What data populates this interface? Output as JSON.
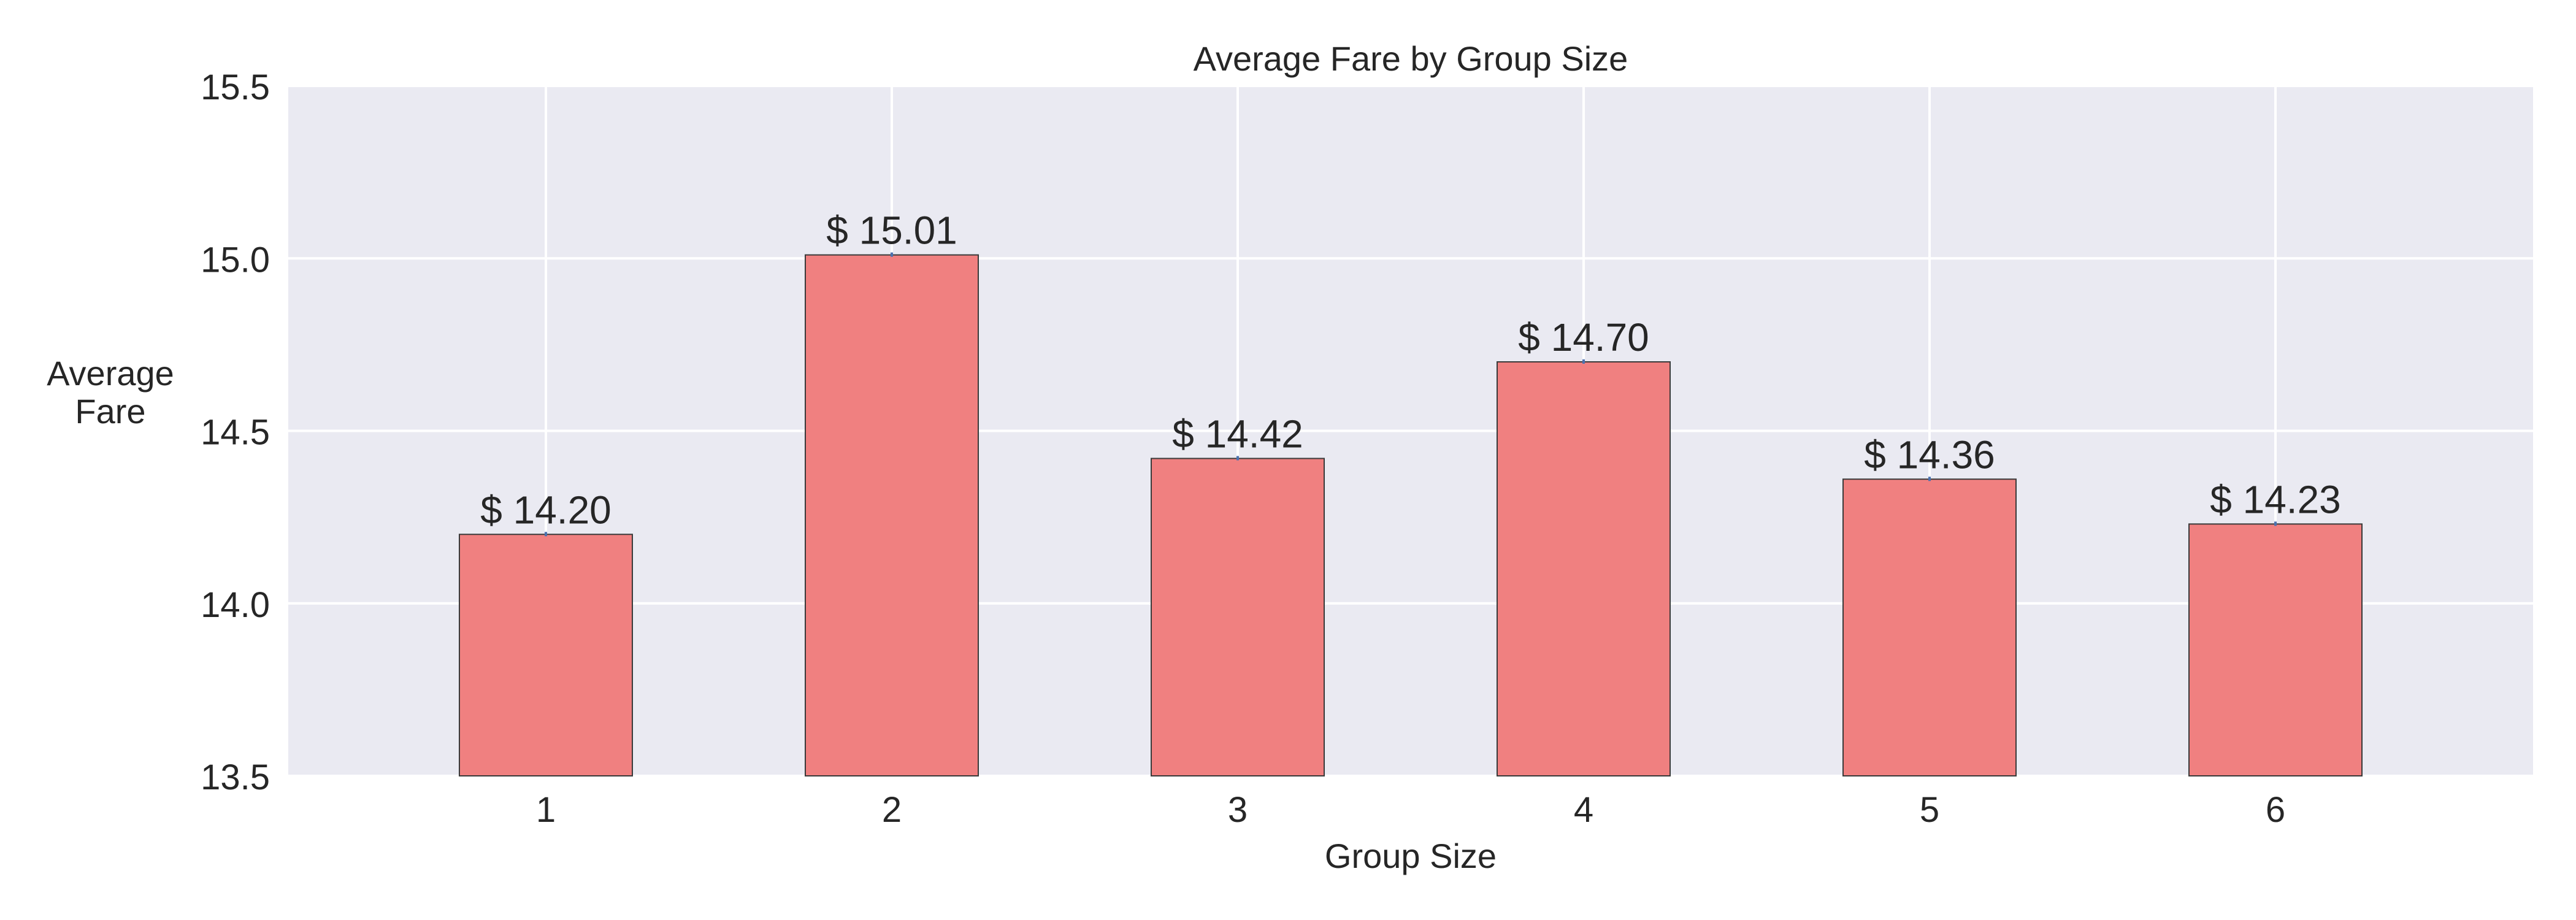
{
  "chart_data": {
    "type": "bar",
    "title": "Average Fare by Group Size",
    "xlabel": "Group Size",
    "ylabel": "Average\nFare",
    "categories": [
      "1",
      "2",
      "3",
      "4",
      "5",
      "6"
    ],
    "values": [
      14.2,
      15.01,
      14.42,
      14.7,
      14.36,
      14.23
    ],
    "data_labels": [
      "$ 14.20",
      "$ 15.01",
      "$ 14.42",
      "$ 14.70",
      "$ 14.36",
      "$ 14.23"
    ],
    "ylim": [
      13.5,
      15.5
    ],
    "yticks": [
      "13.5",
      "14.0",
      "14.5",
      "15.0",
      "15.5"
    ],
    "grid": true,
    "legend": "none",
    "colors": {
      "bar": "#f08080",
      "bar_edge": "#3a3a3a",
      "plot_background": "#eaeaf2",
      "grid": "#ffffff",
      "text": "#262626",
      "error_tick": "#4c72b0"
    }
  }
}
